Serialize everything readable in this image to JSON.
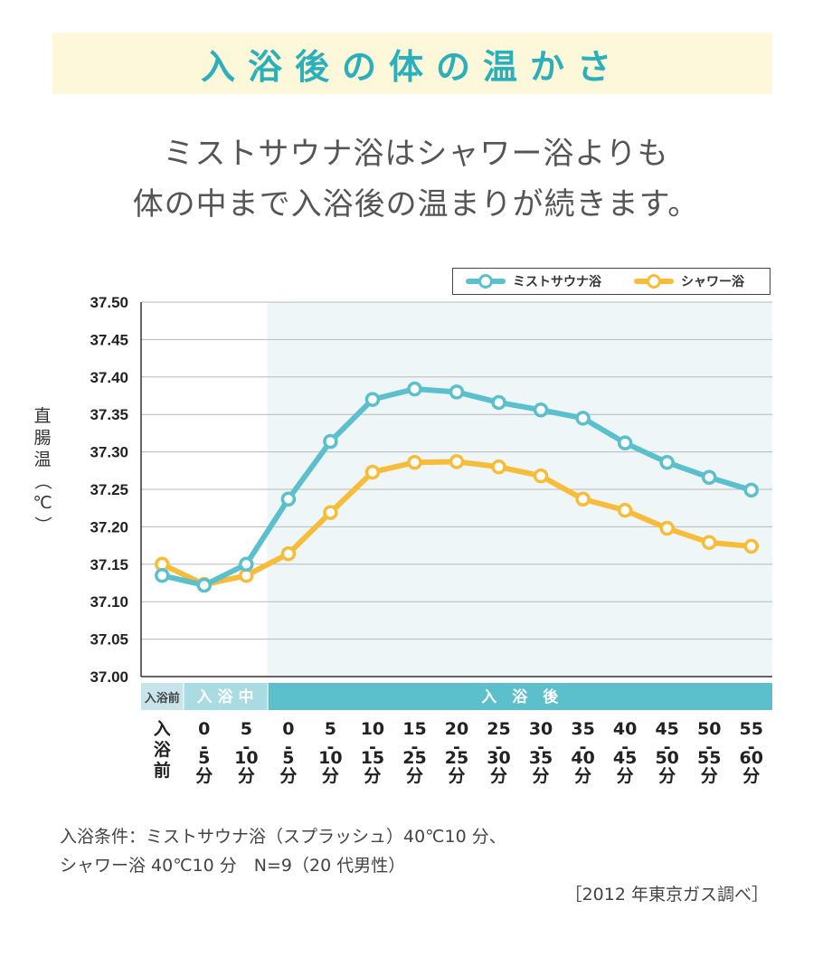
{
  "header": {
    "title": "入浴後の体の温かさ",
    "subtitle_line1": "ミストサウナ浴はシャワー浴よりも",
    "subtitle_line2": "体の中まで入浴後の温まりが続きます。"
  },
  "chart_data": {
    "type": "line",
    "ylabel": "直腸温（℃）",
    "ylim": [
      37.0,
      37.5
    ],
    "yticks": [
      "37.50",
      "37.45",
      "37.40",
      "37.35",
      "37.30",
      "37.25",
      "37.20",
      "37.15",
      "37.10",
      "37.05",
      "37.00"
    ],
    "grid": true,
    "legend_position": "top-right",
    "phases": [
      {
        "label": "入浴前",
        "span": [
          0,
          0
        ]
      },
      {
        "label": "入 浴 中",
        "span": [
          1,
          2
        ]
      },
      {
        "label": "入　浴　後",
        "span": [
          3,
          14
        ]
      }
    ],
    "categories": [
      [
        "入",
        "浴",
        "前"
      ],
      [
        "0",
        "-",
        "5",
        "分"
      ],
      [
        "5",
        "-",
        "10",
        "分"
      ],
      [
        "0",
        "-",
        "5",
        "分"
      ],
      [
        "5",
        "-",
        "10",
        "分"
      ],
      [
        "10",
        "-",
        "15",
        "分"
      ],
      [
        "15",
        "-",
        "25",
        "分"
      ],
      [
        "20",
        "-",
        "25",
        "分"
      ],
      [
        "25",
        "-",
        "30",
        "分"
      ],
      [
        "30",
        "-",
        "35",
        "分"
      ],
      [
        "35",
        "-",
        "40",
        "分"
      ],
      [
        "40",
        "-",
        "45",
        "分"
      ],
      [
        "45",
        "-",
        "50",
        "分"
      ],
      [
        "50",
        "-",
        "55",
        "分"
      ],
      [
        "55",
        "-",
        "60",
        "分"
      ]
    ],
    "series": [
      {
        "name": "ミストサウナ浴",
        "color": "#5bc0cc",
        "values": [
          37.135,
          37.122,
          37.15,
          37.237,
          37.314,
          37.37,
          37.384,
          37.38,
          37.366,
          37.356,
          37.345,
          37.312,
          37.286,
          37.266,
          37.249
        ]
      },
      {
        "name": "シャワー浴",
        "color": "#f7bc3a",
        "values": [
          37.15,
          37.123,
          37.135,
          37.164,
          37.219,
          37.273,
          37.286,
          37.287,
          37.28,
          37.268,
          37.237,
          37.222,
          37.198,
          37.179,
          37.174
        ]
      }
    ]
  },
  "notes": {
    "condition_line1": "入浴条件：ミストサウナ浴（スプラッシュ）40℃10 分、",
    "condition_line2": "シャワー浴 40℃10 分　N=9（20 代男性）",
    "source": "［2012 年東京ガス調べ］"
  },
  "colors": {
    "title": "#2bb0bb",
    "title_band": "#fcf8d9",
    "after_bath_region": "#eef6f8",
    "phase_before": "#c8e4ea",
    "phase_during": "#a9dbe3",
    "phase_after": "#5bc0cc"
  }
}
